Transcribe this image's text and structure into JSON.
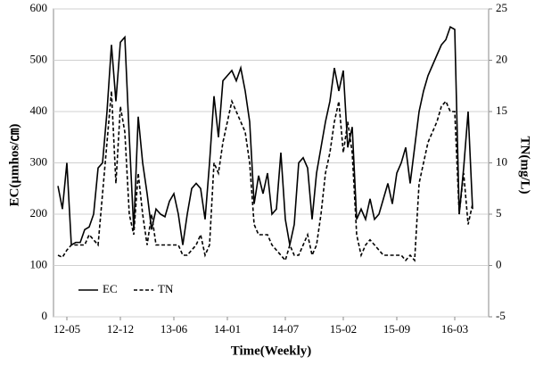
{
  "chart_data": {
    "type": "line",
    "xlabel": "Time(Weekly)",
    "ylabel": "EC(μmhos/㎝)",
    "y2label": "TN(mg/L)",
    "categories": [
      null,
      null,
      "12-05",
      null,
      null,
      null,
      null,
      null,
      null,
      null,
      null,
      null,
      null,
      null,
      "12-12",
      null,
      null,
      null,
      null,
      null,
      null,
      null,
      null,
      null,
      null,
      null,
      "13-06",
      null,
      null,
      null,
      null,
      null,
      null,
      null,
      null,
      null,
      null,
      null,
      "14-01",
      null,
      null,
      null,
      null,
      null,
      null,
      null,
      null,
      null,
      null,
      null,
      null,
      "14-07",
      null,
      null,
      null,
      null,
      null,
      null,
      null,
      null,
      null,
      null,
      null,
      null,
      "15-02",
      null,
      null,
      null,
      null,
      null,
      null,
      null,
      null,
      null,
      null,
      null,
      "15-09",
      null,
      null,
      null,
      null,
      null,
      null,
      null,
      null,
      null,
      null,
      null,
      null,
      "16-03",
      null,
      null,
      null,
      null
    ],
    "series": [
      {
        "name": "EC",
        "color": "#000000",
        "dash": "solid",
        "axis": "y",
        "values": [
          255,
          210,
          300,
          140,
          145,
          145,
          170,
          175,
          200,
          290,
          300,
          400,
          530,
          420,
          535,
          545,
          350,
          170,
          390,
          300,
          240,
          170,
          210,
          200,
          195,
          225,
          240,
          200,
          140,
          200,
          250,
          260,
          250,
          190,
          300,
          430,
          350,
          460,
          470,
          480,
          460,
          485,
          440,
          380,
          220,
          275,
          240,
          280,
          200,
          210,
          320,
          190,
          140,
          180,
          300,
          310,
          290,
          190,
          280,
          330,
          380,
          420,
          485,
          440,
          480,
          330,
          370,
          190,
          210,
          190,
          230,
          190,
          200,
          230,
          260,
          220,
          280,
          300,
          330,
          260,
          330,
          400,
          440,
          470,
          490,
          510,
          530,
          540,
          565,
          560,
          200,
          290,
          400,
          210
        ]
      },
      {
        "name": "TN",
        "color": "#000000",
        "dash": "dashed",
        "axis": "y2",
        "values": [
          1,
          0.8,
          1.5,
          2,
          2,
          2,
          2,
          3,
          2.5,
          2,
          7,
          12,
          17,
          8,
          15.5,
          13,
          5,
          3,
          9,
          5,
          2,
          5,
          2,
          2,
          2,
          2,
          2,
          2,
          1,
          1,
          1.5,
          2,
          3,
          1,
          2,
          10,
          9,
          12,
          14,
          16,
          15,
          14,
          13,
          10,
          4,
          3,
          3,
          3,
          2,
          1.5,
          1,
          0.5,
          2,
          1,
          1,
          2,
          3,
          1,
          2,
          5,
          9,
          11,
          14,
          16,
          11,
          14,
          11,
          3,
          1,
          2,
          2.5,
          2,
          1.5,
          1,
          1,
          1,
          1,
          1,
          0.5,
          1,
          0.5,
          8,
          10,
          12,
          13,
          14,
          15.5,
          16,
          15,
          15,
          5,
          9,
          4,
          6
        ]
      }
    ],
    "ylim": [
      0,
      600
    ],
    "yticks": [
      0,
      100,
      200,
      300,
      400,
      500,
      600
    ],
    "y2lim": [
      -5,
      25
    ],
    "y2ticks": [
      -5,
      0,
      5,
      10,
      15,
      20,
      25
    ],
    "grid": true,
    "legend": "lower left"
  }
}
